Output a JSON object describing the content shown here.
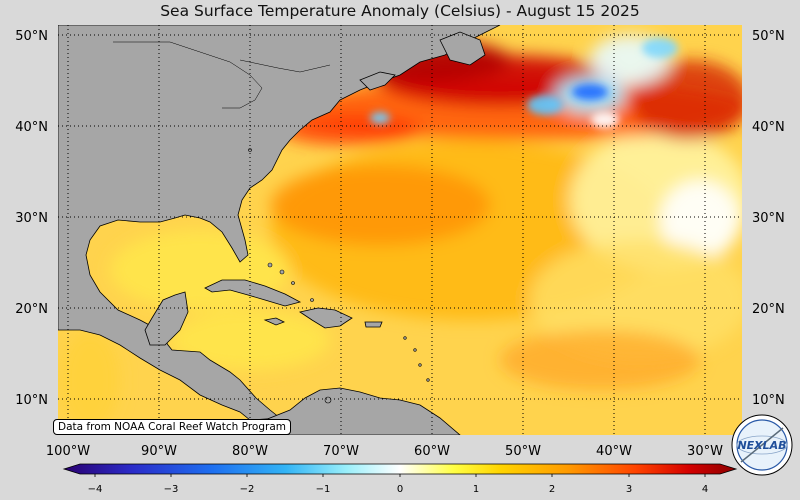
{
  "title": "Sea Surface Temperature Anomaly (Celsius) - August 15 2025",
  "credit": "Data from NOAA Coral Reef Watch Program",
  "logo_text": "NEXLAB",
  "lat_labels": [
    "50°N",
    "40°N",
    "30°N",
    "20°N",
    "10°N"
  ],
  "lon_labels": [
    "100°W",
    "90°W",
    "80°W",
    "70°W",
    "60°W",
    "50°W",
    "40°W",
    "30°W"
  ],
  "colorbar": {
    "ticks": [
      "−4",
      "−3",
      "−2",
      "−1",
      "0",
      "1",
      "2",
      "3",
      "4"
    ],
    "min": -4,
    "max": 4,
    "colors": [
      "#2a0070",
      "#2b2bc8",
      "#1e6ff0",
      "#33b4f5",
      "#9aeffa",
      "#ffffff",
      "#ffff44",
      "#ffd400",
      "#ff9a00",
      "#ff4400",
      "#d40000",
      "#8b0000"
    ]
  },
  "colors": {
    "land": "#a6a6a6",
    "ocean_base": "#ffd34d",
    "background": "#d9d9d9"
  }
}
